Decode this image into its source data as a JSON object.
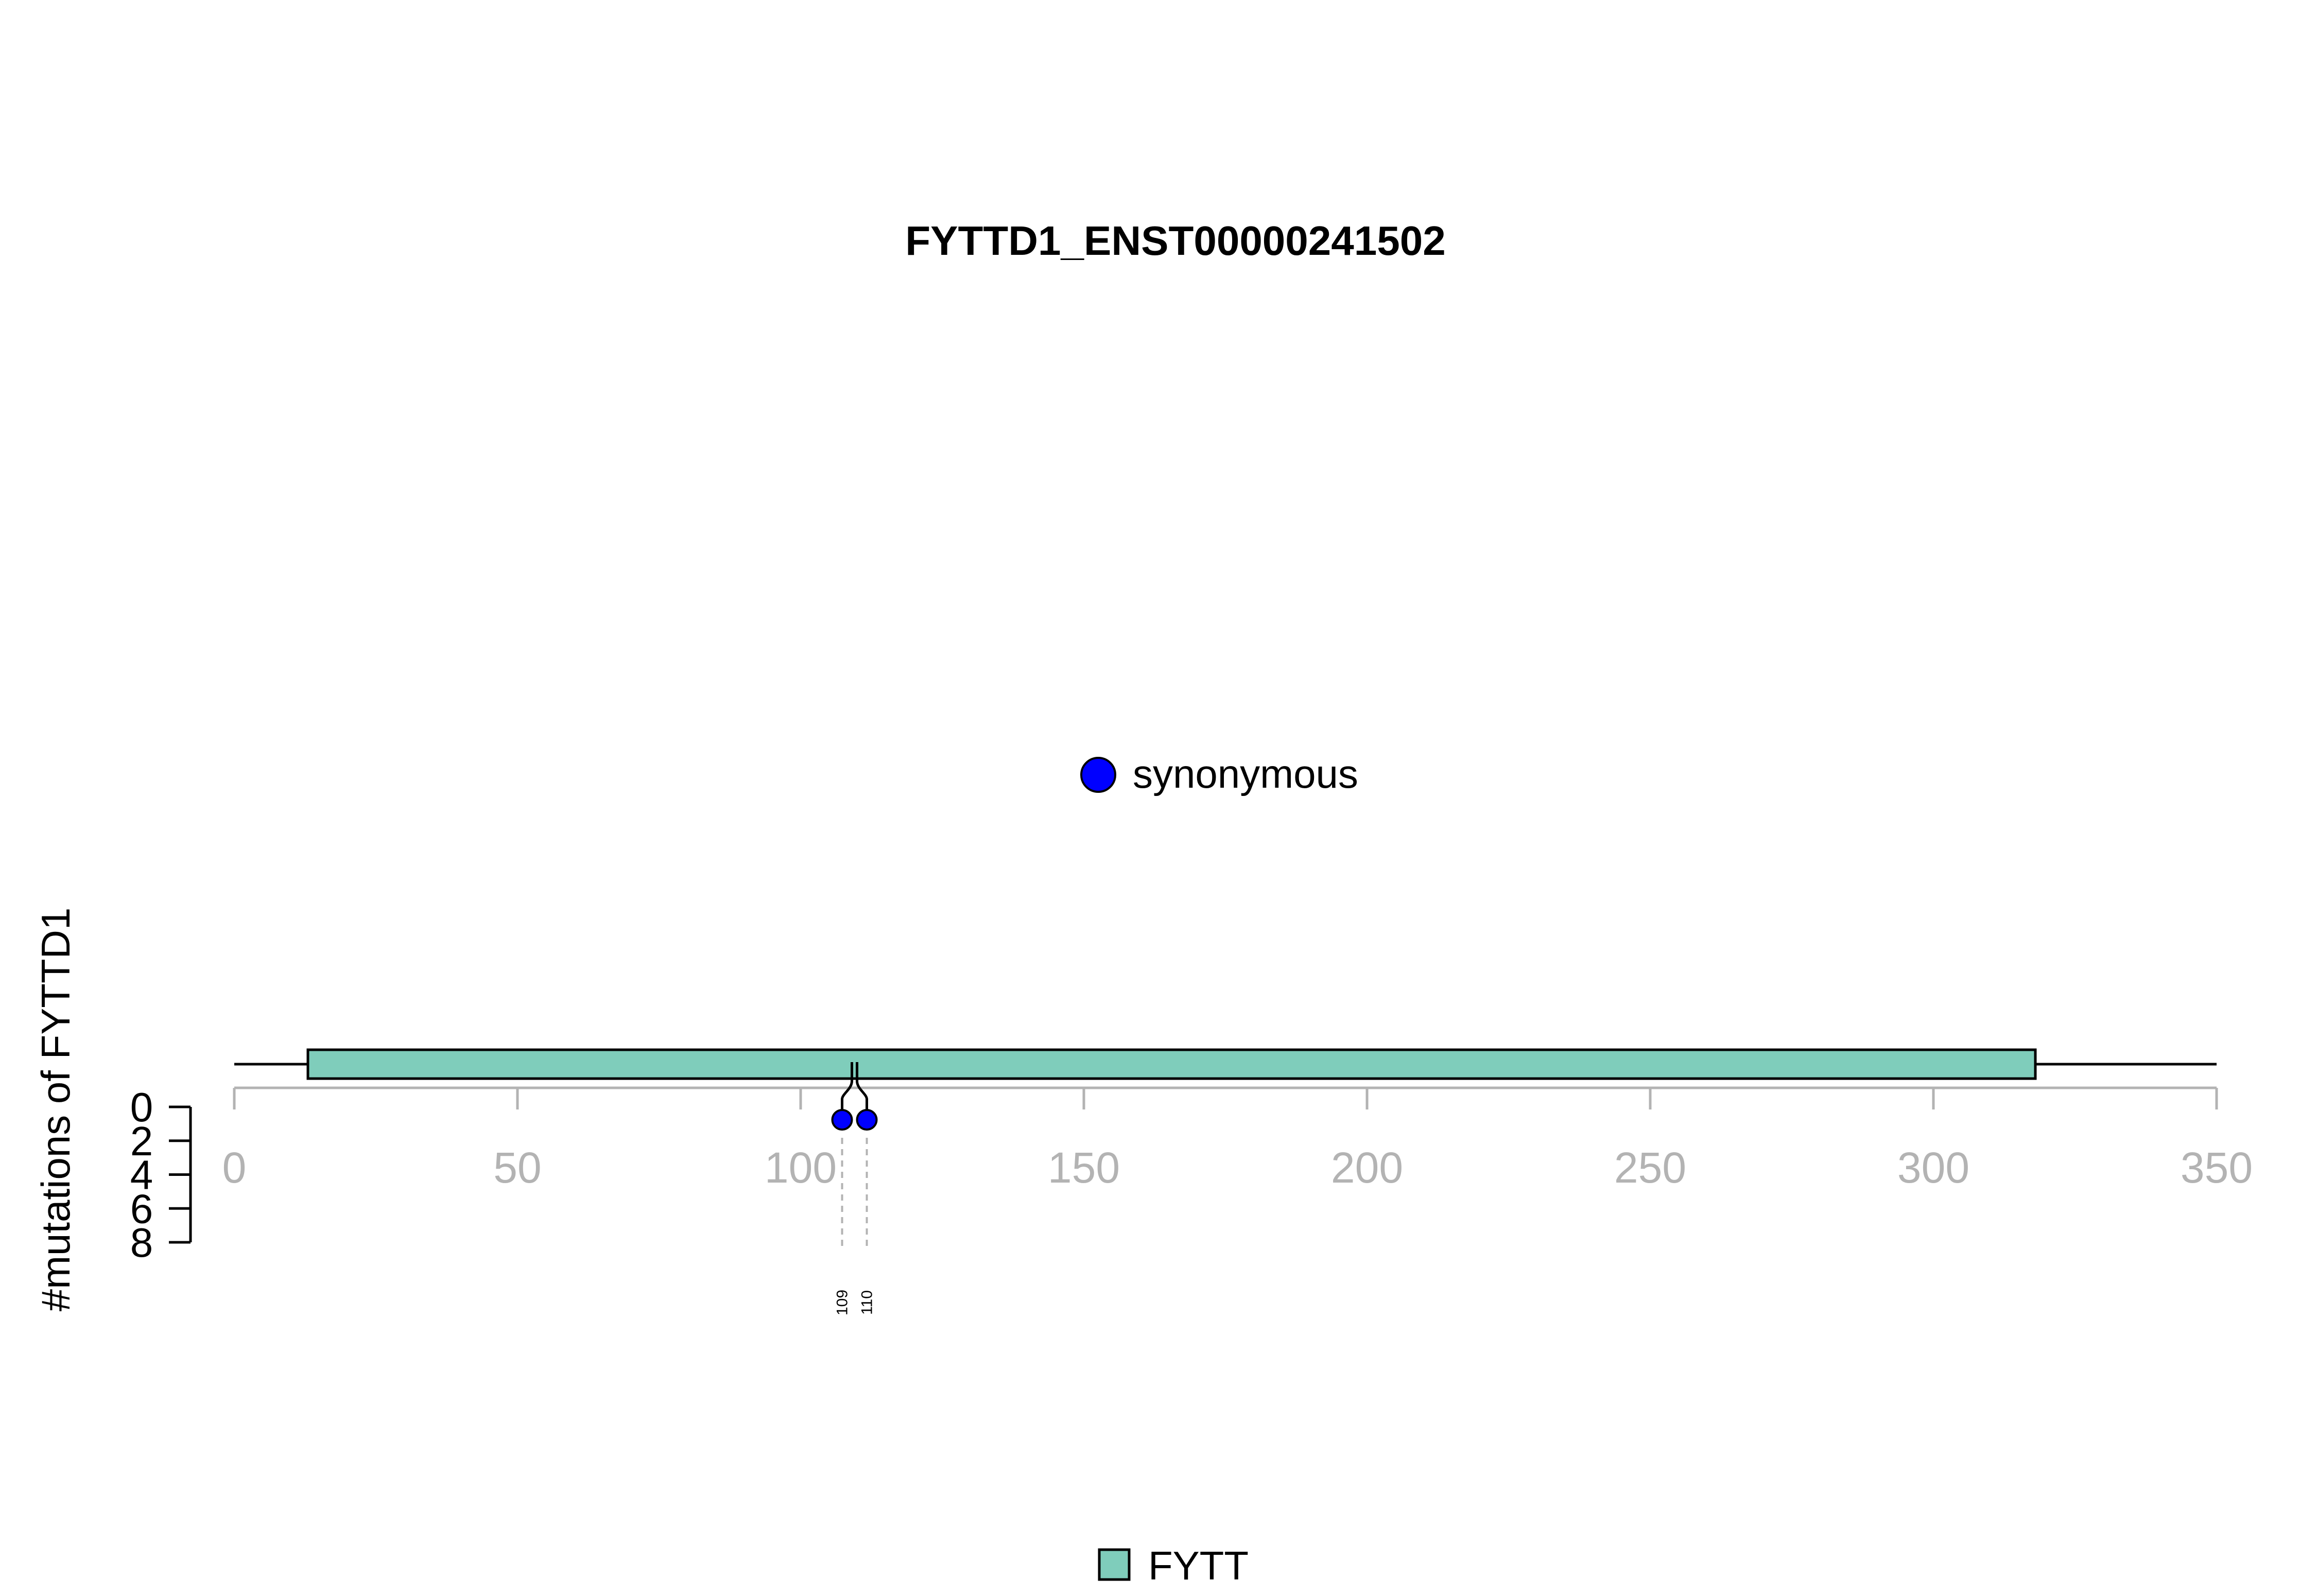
{
  "chart_data": {
    "type": "lollipop",
    "title": "FYTTD1_ENST00000241502",
    "ylabel": "#mutations of FYTTD1",
    "xlim": [
      0,
      350
    ],
    "x_ticks": [
      0,
      50,
      100,
      150,
      200,
      250,
      300,
      350
    ],
    "y_ticks": [
      0,
      2,
      4,
      6,
      8
    ],
    "protein_length": 350,
    "domains": [
      {
        "name": "FYTT",
        "start": 13,
        "end": 318,
        "color": "#7fcdbb"
      }
    ],
    "mutations": [
      {
        "position": 109,
        "count": 1,
        "type": "synonymous",
        "color": "#0000ff"
      },
      {
        "position": 110,
        "count": 1,
        "type": "synonymous",
        "color": "#0000ff"
      }
    ],
    "legend_mutation": {
      "label": "synonymous",
      "color": "#0000ff"
    },
    "legend_domain": {
      "label": "FYTT",
      "color": "#7fcdbb"
    }
  }
}
